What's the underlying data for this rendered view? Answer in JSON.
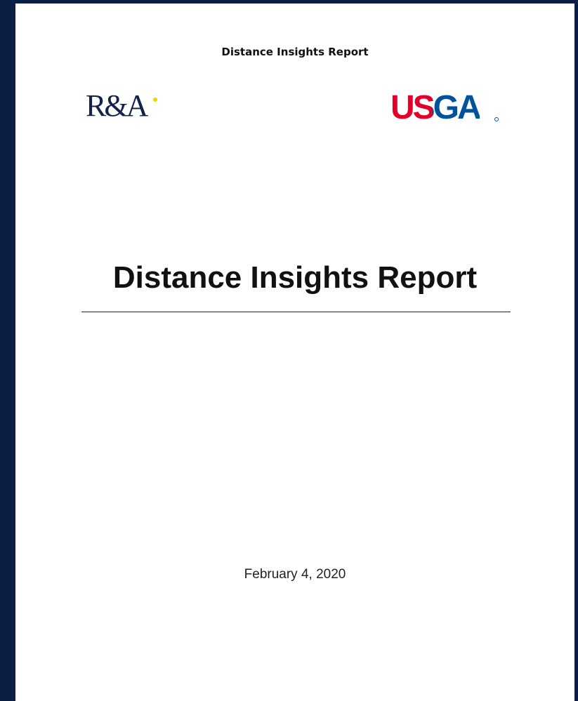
{
  "header": {
    "title": "Distance Insights Report"
  },
  "logos": [
    "R&A",
    "USGA"
  ],
  "title": "Distance Insights Report",
  "date": "February 4, 2020"
}
